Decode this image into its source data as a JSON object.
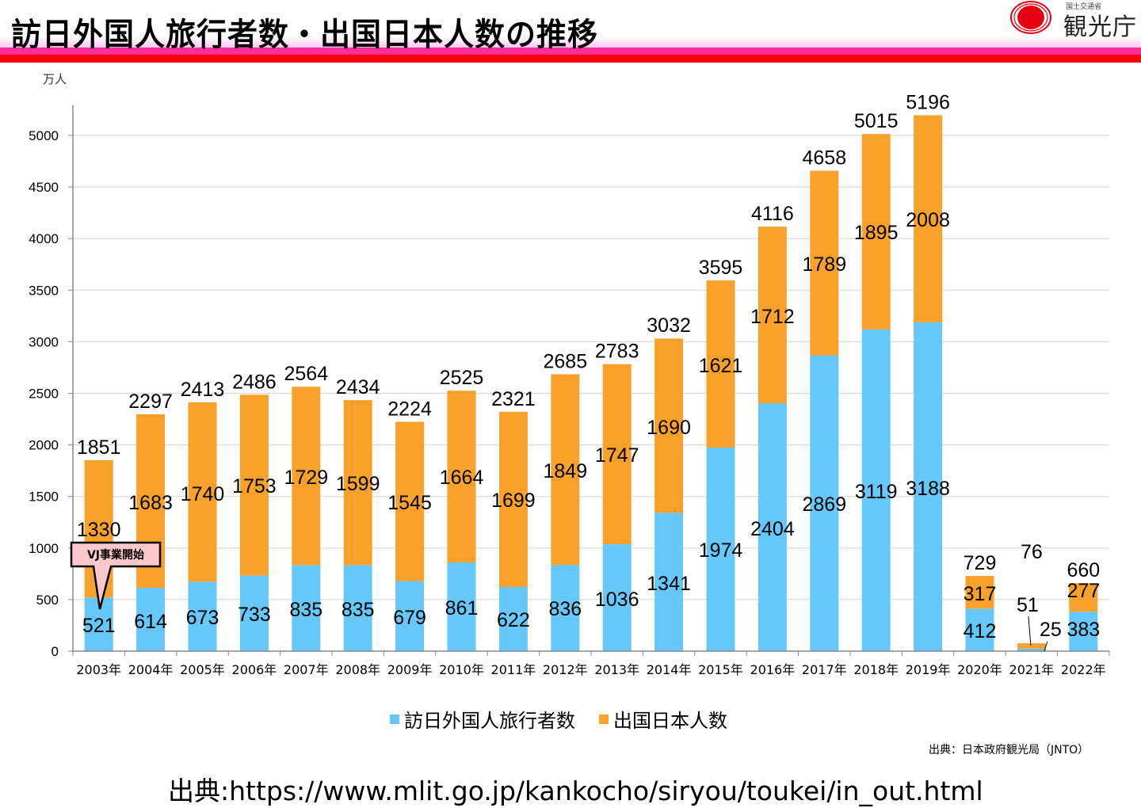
{
  "header": {
    "title": "訪日外国人旅行者数・出国日本人数の推移",
    "logo_ministry": "国土交通省",
    "logo_name": "観光庁"
  },
  "colors": {
    "inbound": "#66c8fa",
    "outbound": "#f9a12a",
    "band_pink": "#ff2e9a",
    "band_red": "#ff0000",
    "callout_fill": "#ffc8cc"
  },
  "chart_data": {
    "type": "bar",
    "stacked": true,
    "title": "訪日外国人旅行者数・出国日本人数の推移",
    "xlabel": "",
    "ylabel": "万人",
    "ylim": [
      0,
      5000
    ],
    "yticks": [
      0,
      500,
      1000,
      1500,
      2000,
      2500,
      3000,
      3500,
      4000,
      4500,
      5000
    ],
    "grid": true,
    "legend_position": "bottom",
    "categories": [
      "2003年",
      "2004年",
      "2005年",
      "2006年",
      "2007年",
      "2008年",
      "2009年",
      "2010年",
      "2011年",
      "2012年",
      "2013年",
      "2014年",
      "2015年",
      "2016年",
      "2017年",
      "2018年",
      "2019年",
      "2020年",
      "2021年",
      "2022年"
    ],
    "series": [
      {
        "name": "訪日外国人旅行者数",
        "color": "#66c8fa",
        "values": [
          521,
          614,
          673,
          733,
          835,
          835,
          679,
          861,
          622,
          836,
          1036,
          1341,
          1974,
          2404,
          2869,
          3119,
          3188,
          412,
          25,
          383
        ]
      },
      {
        "name": "出国日本人数",
        "color": "#f9a12a",
        "values": [
          1330,
          1683,
          1740,
          1753,
          1729,
          1599,
          1545,
          1664,
          1699,
          1849,
          1747,
          1690,
          1621,
          1712,
          1789,
          1895,
          2008,
          317,
          51,
          277
        ]
      }
    ],
    "totals": [
      1851,
      2297,
      2413,
      2486,
      2564,
      2434,
      2224,
      2525,
      2321,
      2685,
      2783,
      3032,
      3595,
      4116,
      4658,
      5015,
      5196,
      729,
      76,
      660
    ],
    "annotations": [
      {
        "text": "VJ事業開始",
        "category": "2003年"
      }
    ]
  },
  "unit_label": "万人",
  "legend": {
    "items": [
      {
        "label": "訪日外国人旅行者数",
        "color": "#66c8fa"
      },
      {
        "label": "出国日本人数",
        "color": "#f9a12a"
      }
    ]
  },
  "source_note": "出典：日本政府観光局（JNTO）",
  "source_url": "出典:https://www.mlit.go.jp/kankocho/siryou/toukei/in_out.html"
}
